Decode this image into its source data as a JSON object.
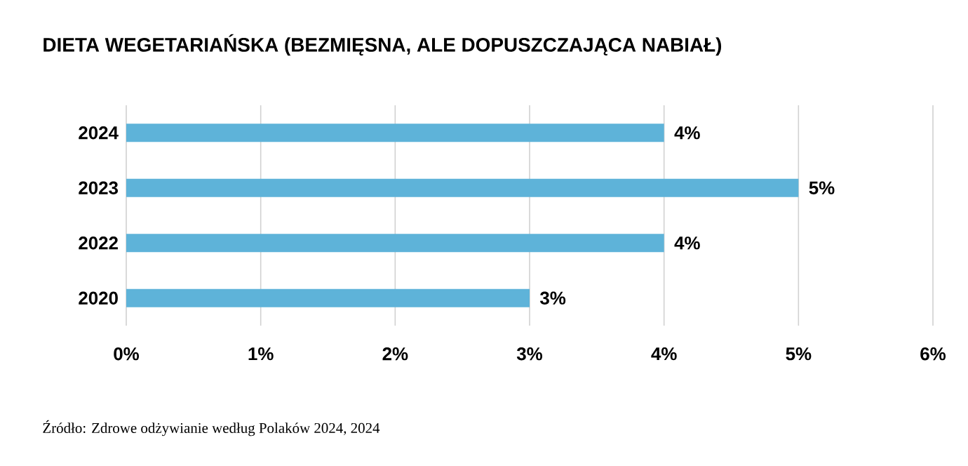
{
  "chart_data": {
    "type": "bar",
    "orientation": "horizontal",
    "title": "DIETA WEGETARIAŃSKA (BEZMIĘSNA, ALE DOPUSZCZAJĄCA NABIAŁ)",
    "categories": [
      "2024",
      "2023",
      "2022",
      "2020"
    ],
    "values": [
      4,
      5,
      4,
      3
    ],
    "value_labels": [
      "4%",
      "5%",
      "4%",
      "3%"
    ],
    "color": "#5eb3d9",
    "xlim": [
      0,
      6
    ],
    "xticks": [
      {
        "value": 0,
        "label": "0%"
      },
      {
        "value": 1,
        "label": "1%"
      },
      {
        "value": 2,
        "label": "2%"
      },
      {
        "value": 3,
        "label": "3%"
      },
      {
        "value": 4,
        "label": "4%"
      },
      {
        "value": 5,
        "label": "5%"
      },
      {
        "value": 6,
        "label": "6%"
      }
    ],
    "grid": "x",
    "annotations": [
      "Źródło: Zdrowe odżywianie według Polaków 2024, 2024"
    ]
  }
}
